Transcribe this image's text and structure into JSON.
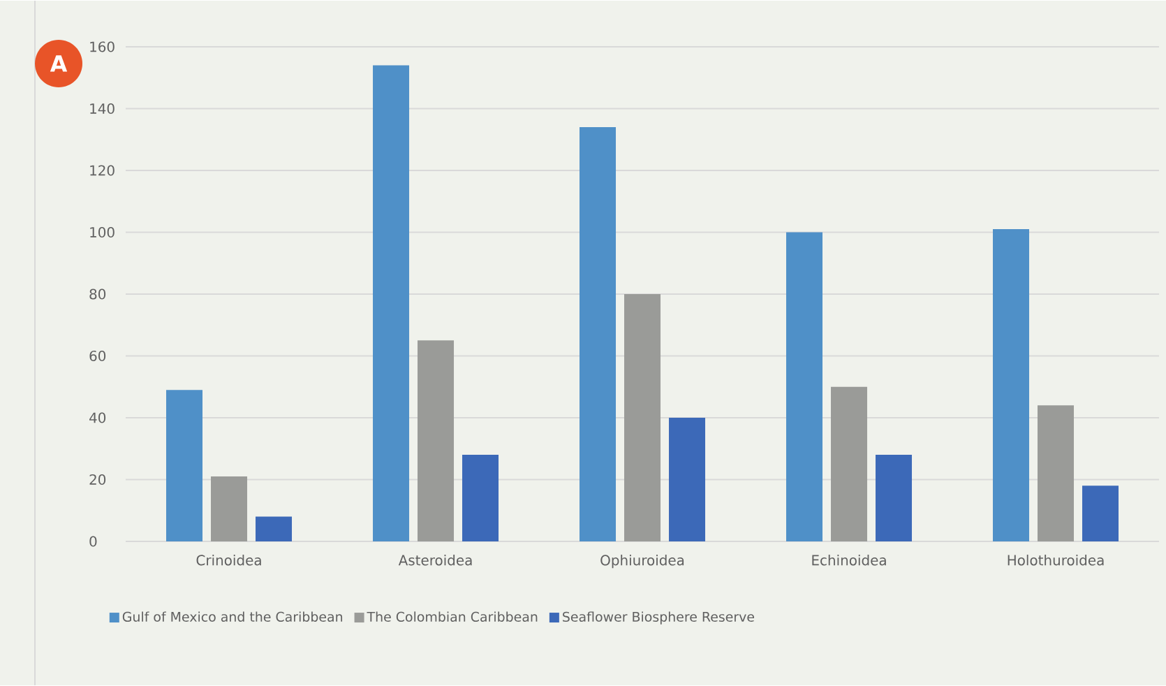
{
  "chart_data": {
    "type": "bar",
    "categories": [
      "Crinoidea",
      "Asteroidea",
      "Ophiuroidea",
      "Echinoidea",
      "Holothuroidea"
    ],
    "series": [
      {
        "name": "Gulf of Mexico and the Caribbean",
        "color": "#4f90c8",
        "values": [
          49,
          154,
          134,
          100,
          101
        ]
      },
      {
        "name": "The Colombian Caribbean",
        "color": "#9a9b98",
        "values": [
          21,
          65,
          80,
          50,
          44
        ]
      },
      {
        "name": "Seaflower Biosphere Reserve",
        "color": "#3c69b8",
        "values": [
          8,
          28,
          40,
          28,
          18
        ]
      }
    ],
    "ylim": [
      0,
      160
    ],
    "yticks": [
      0,
      20,
      40,
      60,
      80,
      100,
      120,
      140,
      160
    ],
    "grid": "y",
    "legend": "bottom left",
    "annotations": [
      "A"
    ]
  }
}
